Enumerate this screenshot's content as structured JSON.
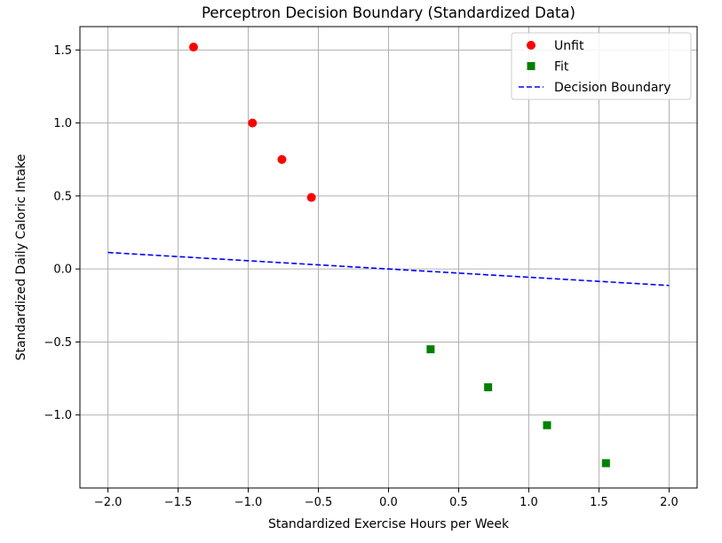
{
  "chart_data": {
    "type": "scatter",
    "title": "Perceptron Decision Boundary (Standardized Data)",
    "xlabel": "Standardized Exercise Hours per Week",
    "ylabel": "Standardized Daily Caloric Intake",
    "xlim": [
      -2.2,
      2.2
    ],
    "ylim": [
      -1.5,
      1.66
    ],
    "grid": true,
    "legend_position": "top-right",
    "x_ticks": [
      -2.0,
      -1.5,
      -1.0,
      -0.5,
      0.0,
      0.5,
      1.0,
      1.5,
      2.0
    ],
    "x_tick_labels": [
      "−2.0",
      "−1.5",
      "−1.0",
      "−0.5",
      "0.0",
      "0.5",
      "1.0",
      "1.5",
      "2.0"
    ],
    "y_ticks": [
      -1.0,
      -0.5,
      0.0,
      0.5,
      1.0,
      1.5
    ],
    "y_tick_labels": [
      "−1.0",
      "−0.5",
      "0.0",
      "0.5",
      "1.0",
      "1.5"
    ],
    "series": [
      {
        "name": "Unfit",
        "marker": "circle",
        "color": "#ff0000",
        "points": [
          {
            "x": -1.39,
            "y": 1.52
          },
          {
            "x": -0.97,
            "y": 1.0
          },
          {
            "x": -0.76,
            "y": 0.75
          },
          {
            "x": -0.55,
            "y": 0.49
          }
        ]
      },
      {
        "name": "Fit",
        "marker": "square",
        "color": "#008000",
        "points": [
          {
            "x": 0.3,
            "y": -0.55
          },
          {
            "x": 0.71,
            "y": -0.81
          },
          {
            "x": 1.13,
            "y": -1.07
          },
          {
            "x": 1.55,
            "y": -1.33
          }
        ]
      },
      {
        "name": "Decision Boundary",
        "marker": "dashed-line",
        "color": "#0000ff",
        "points": [
          {
            "x": -2.0,
            "y": 0.113
          },
          {
            "x": 2.0,
            "y": -0.113
          }
        ]
      }
    ]
  }
}
